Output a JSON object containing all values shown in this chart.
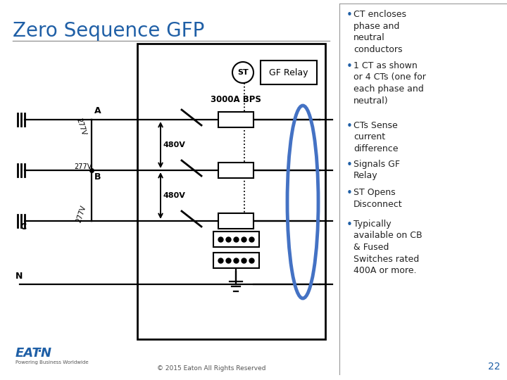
{
  "title": "Zero Sequence GFP",
  "title_color": "#1F5FA6",
  "title_fontsize": 20,
  "bg_color": "#FFFFFF",
  "bullet_points": [
    "CT encloses\nphase and\nneutral\nconductors",
    "1 CT as shown\nor 4 CTs (one for\neach phase and\nneutral)",
    "CTs Sense\ncurrent\ndifference",
    "Signals GF\nRelay",
    "ST Opens\nDisconnect",
    "Typically\navailable on CB\n& Fused\nSwitches rated\n400A or more."
  ],
  "bullet_color": "#222222",
  "bullet_dot_color": "#1F5FA6",
  "bullet_fontsize": 9.0,
  "divider_color": "#999999",
  "page_number": "22",
  "page_num_color": "#1F5FA6",
  "diagram_line_color": "#000000",
  "ct_oval_color": "#4472C4",
  "label_A": "A",
  "label_B": "B",
  "label_C": "C",
  "label_N": "N",
  "label_277V": "277V",
  "label_480V": "480V",
  "label_3000A": "3000A BPS",
  "label_GF": "GF Relay",
  "label_ST": "ST",
  "copyright": "© 2015 Eaton All Rights Reserved",
  "eaton_color": "#1F5FA6"
}
